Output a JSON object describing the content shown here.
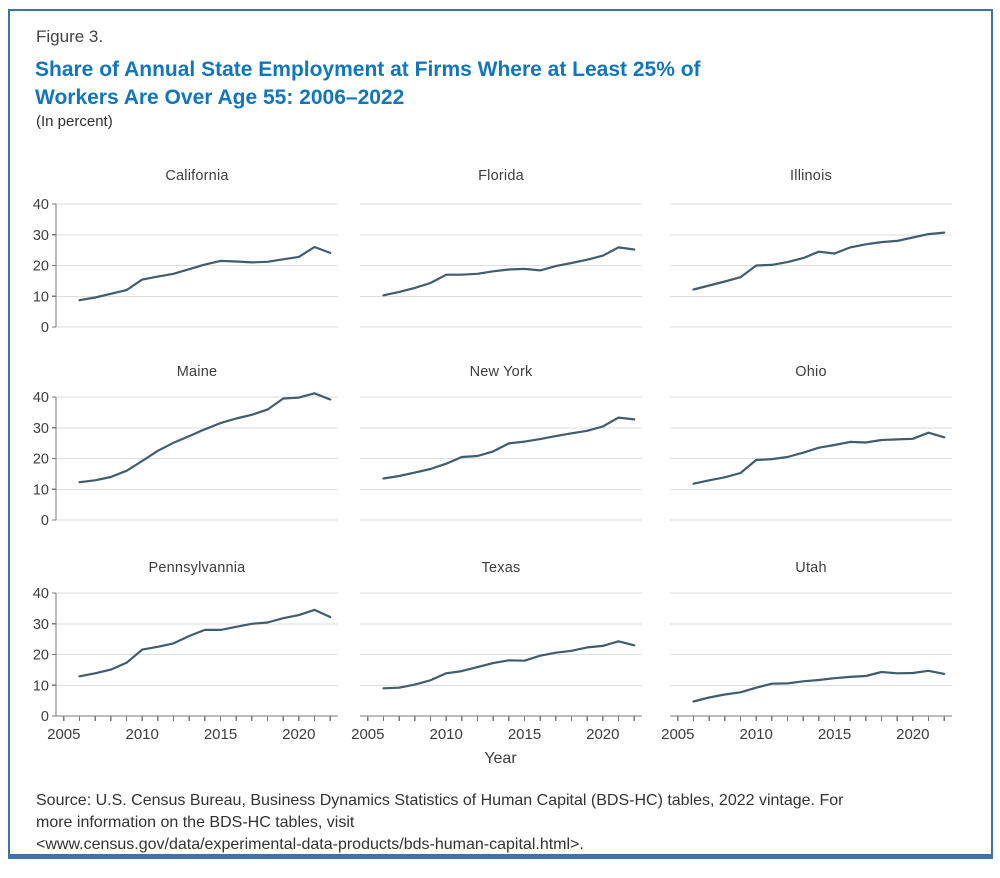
{
  "figure": {
    "label": "Figure 3.",
    "title": "Share of Annual State Employment at Firms Where at Least 25% of\nWorkers Are Over Age 55: 2006–2022",
    "subtitle": "(In percent)",
    "source": "Source: U.S. Census Bureau, Business Dynamics Statistics of Human Capital (BDS-HC) tables, 2022 vintage. For\nmore information on the BDS-HC tables, visit\n<www.census.gov/data/experimental-data-products/bds-human-capital.html>."
  },
  "colors": {
    "accent_blue": "#1276bc",
    "border_blue": "#3f72a8",
    "line": "#3f5d6e",
    "grid": "#dedede",
    "axis": "#7a7a7a",
    "tick_text": "#3d3d3d"
  },
  "chart_data": {
    "type": "line",
    "layout": "3x3 small multiples",
    "x": [
      2006,
      2007,
      2008,
      2009,
      2010,
      2011,
      2012,
      2013,
      2014,
      2015,
      2016,
      2017,
      2018,
      2019,
      2020,
      2021,
      2022
    ],
    "xlabel": "Year",
    "ylabel": "",
    "ylim": [
      0,
      40
    ],
    "yticks": [
      0,
      10,
      20,
      30,
      40
    ],
    "xticks_labeled": [
      2005,
      2010,
      2015,
      2020
    ],
    "xtick_minor_range": [
      2005,
      2022
    ],
    "grid": true,
    "legend": "none",
    "series": [
      {
        "name": "California",
        "values": [
          8.7,
          9.6,
          10.8,
          12.0,
          15.4,
          16.4,
          17.3,
          18.8,
          20.3,
          21.5,
          21.3,
          21.0,
          21.2,
          22.0,
          22.8,
          26.0,
          24.1
        ]
      },
      {
        "name": "Florida",
        "values": [
          10.3,
          11.4,
          12.7,
          14.3,
          17.0,
          17.0,
          17.3,
          18.1,
          18.7,
          18.9,
          18.4,
          19.8,
          20.8,
          21.9,
          23.2,
          25.9,
          25.2
        ]
      },
      {
        "name": "Illinois",
        "values": [
          12.2,
          13.5,
          14.8,
          16.2,
          20.0,
          20.2,
          21.1,
          22.4,
          24.5,
          23.9,
          25.9,
          26.9,
          27.6,
          28.0,
          29.1,
          30.2,
          30.7
        ]
      },
      {
        "name": "Maine",
        "values": [
          12.3,
          12.9,
          14.0,
          16.0,
          19.2,
          22.5,
          25.1,
          27.3,
          29.5,
          31.5,
          33.0,
          34.2,
          35.9,
          39.5,
          39.8,
          41.2,
          39.2
        ]
      },
      {
        "name": "New York",
        "values": [
          13.5,
          14.3,
          15.4,
          16.6,
          18.3,
          20.5,
          20.8,
          22.3,
          24.9,
          25.5,
          26.3,
          27.3,
          28.2,
          29.0,
          30.4,
          33.3,
          32.7
        ]
      },
      {
        "name": "Ohio",
        "values": [
          11.8,
          12.9,
          13.9,
          15.3,
          19.5,
          19.8,
          20.5,
          21.9,
          23.5,
          24.4,
          25.4,
          25.2,
          26.0,
          26.2,
          26.4,
          28.4,
          26.9
        ]
      },
      {
        "name": "Pennsylvannia",
        "values": [
          12.9,
          13.9,
          15.1,
          17.3,
          21.6,
          22.5,
          23.6,
          26.0,
          28.0,
          28.0,
          29.0,
          30.0,
          30.4,
          31.8,
          32.8,
          34.5,
          32.2
        ]
      },
      {
        "name": "Texas",
        "values": [
          9.0,
          9.2,
          10.2,
          11.6,
          13.9,
          14.6,
          15.9,
          17.2,
          18.1,
          18.0,
          19.6,
          20.6,
          21.2,
          22.3,
          22.8,
          24.3,
          23.0
        ]
      },
      {
        "name": "Utah",
        "values": [
          4.7,
          6.0,
          7.0,
          7.7,
          9.2,
          10.5,
          10.6,
          11.3,
          11.7,
          12.3,
          12.7,
          13.0,
          14.3,
          13.9,
          14.0,
          14.7,
          13.7
        ]
      }
    ]
  }
}
